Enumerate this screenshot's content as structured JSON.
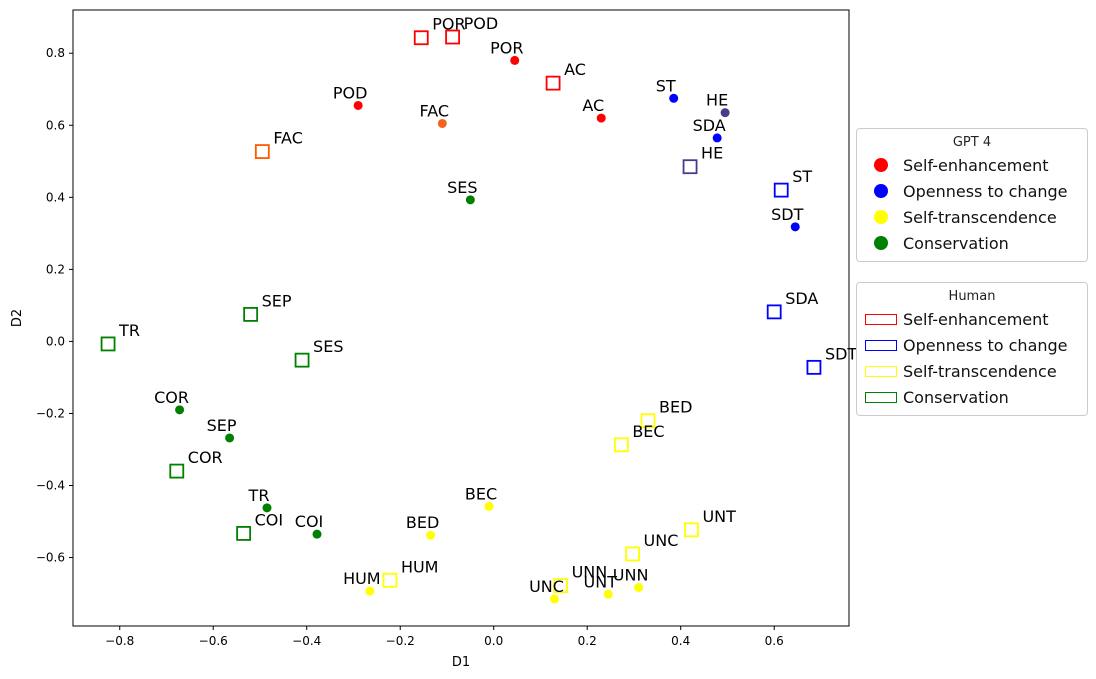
{
  "chart_data": {
    "type": "scatter",
    "title": "",
    "xlabel": "D1",
    "ylabel": "D2",
    "xlim": [
      -0.9,
      0.76
    ],
    "ylim": [
      -0.79,
      0.92
    ],
    "xticks": [
      -0.8,
      -0.6,
      -0.4,
      -0.2,
      0.0,
      0.2,
      0.4,
      0.6
    ],
    "yticks": [
      -0.6,
      -0.4,
      -0.2,
      0.0,
      0.2,
      0.4,
      0.6,
      0.8
    ],
    "xtick_labels": [
      "−0.8",
      "−0.6",
      "−0.4",
      "−0.2",
      "0.0",
      "0.2",
      "0.4",
      "0.6"
    ],
    "ytick_labels": [
      "−0.6",
      "−0.4",
      "−0.2",
      "0.0",
      "0.2",
      "0.4",
      "0.6",
      "0.8"
    ],
    "colors": {
      "red": "#ff0000",
      "blue": "#0000ff",
      "yellow": "#ffff00",
      "green": "#008000",
      "orange": "#ff5a00",
      "purple": "#483d8b",
      "dot_orange": "#f2641e"
    },
    "series": [
      {
        "name": "GPT 4",
        "marker": "circle",
        "points": [
          {
            "label": "POD",
            "x": -0.29,
            "y": 0.655,
            "color": "#ff0000"
          },
          {
            "label": "FAC",
            "x": -0.11,
            "y": 0.605,
            "color": "#f2641e"
          },
          {
            "label": "POR",
            "x": 0.045,
            "y": 0.78,
            "color": "#ff0000"
          },
          {
            "label": "AC",
            "x": 0.23,
            "y": 0.62,
            "color": "#ff0000"
          },
          {
            "label": "ST",
            "x": 0.385,
            "y": 0.675,
            "color": "#0000ff"
          },
          {
            "label": "HE",
            "x": 0.495,
            "y": 0.635,
            "color": "#483d8b"
          },
          {
            "label": "SDA",
            "x": 0.478,
            "y": 0.565,
            "color": "#0000ff"
          },
          {
            "label": "SDT",
            "x": 0.645,
            "y": 0.318,
            "color": "#0000ff"
          },
          {
            "label": "SES",
            "x": -0.05,
            "y": 0.393,
            "color": "#008000"
          },
          {
            "label": "COR",
            "x": -0.672,
            "y": -0.19,
            "color": "#008000"
          },
          {
            "label": "SEP",
            "x": -0.565,
            "y": -0.268,
            "color": "#008000"
          },
          {
            "label": "TR",
            "x": -0.485,
            "y": -0.462,
            "color": "#008000"
          },
          {
            "label": "COI",
            "x": -0.378,
            "y": -0.535,
            "color": "#008000"
          },
          {
            "label": "BEC",
            "x": -0.01,
            "y": -0.458,
            "color": "#ffff00"
          },
          {
            "label": "BED",
            "x": -0.135,
            "y": -0.538,
            "color": "#ffff00"
          },
          {
            "label": "HUM",
            "x": -0.265,
            "y": -0.693,
            "color": "#ffff00"
          },
          {
            "label": "UNC",
            "x": 0.13,
            "y": -0.715,
            "color": "#ffff00"
          },
          {
            "label": "UNT",
            "x": 0.245,
            "y": -0.702,
            "color": "#ffff00"
          },
          {
            "label": "UNN",
            "x": 0.31,
            "y": -0.683,
            "color": "#ffff00"
          }
        ]
      },
      {
        "name": "Human",
        "marker": "square",
        "points": [
          {
            "label": "POR",
            "x": -0.155,
            "y": 0.843,
            "color": "#ff0000"
          },
          {
            "label": "POD",
            "x": -0.088,
            "y": 0.845,
            "color": "#ff0000"
          },
          {
            "label": "AC",
            "x": 0.127,
            "y": 0.717,
            "color": "#ff0000"
          },
          {
            "label": "FAC",
            "x": -0.495,
            "y": 0.527,
            "color": "#ff5a00"
          },
          {
            "label": "HE",
            "x": 0.42,
            "y": 0.485,
            "color": "#483d8b"
          },
          {
            "label": "ST",
            "x": 0.615,
            "y": 0.42,
            "color": "#0000ff"
          },
          {
            "label": "SDA",
            "x": 0.6,
            "y": 0.082,
            "color": "#0000ff"
          },
          {
            "label": "SDT",
            "x": 0.685,
            "y": -0.072,
            "color": "#0000ff"
          },
          {
            "label": "TR",
            "x": -0.825,
            "y": -0.007,
            "color": "#008000"
          },
          {
            "label": "SEP",
            "x": -0.52,
            "y": 0.075,
            "color": "#008000"
          },
          {
            "label": "SES",
            "x": -0.41,
            "y": -0.052,
            "color": "#008000"
          },
          {
            "label": "COR",
            "x": -0.678,
            "y": -0.36,
            "color": "#008000"
          },
          {
            "label": "COI",
            "x": -0.535,
            "y": -0.533,
            "color": "#008000"
          },
          {
            "label": "BED",
            "x": 0.33,
            "y": -0.22,
            "color": "#ffff00"
          },
          {
            "label": "BEC",
            "x": 0.273,
            "y": -0.287,
            "color": "#ffff00"
          },
          {
            "label": "UNT",
            "x": 0.423,
            "y": -0.523,
            "color": "#ffff00"
          },
          {
            "label": "UNC",
            "x": 0.297,
            "y": -0.59,
            "color": "#ffff00"
          },
          {
            "label": "HUM",
            "x": -0.222,
            "y": -0.663,
            "color": "#ffff00"
          },
          {
            "label": "UNN",
            "x": 0.143,
            "y": -0.678,
            "color": "#ffff00"
          }
        ]
      }
    ],
    "legends": [
      {
        "title": "GPT 4",
        "placement": "right-upper",
        "entries": [
          {
            "label": "Self-enhancement",
            "color": "#ff0000"
          },
          {
            "label": "Openness to change",
            "color": "#0000ff"
          },
          {
            "label": "Self-transcendence",
            "color": "#ffff00"
          },
          {
            "label": "Conservation",
            "color": "#008000"
          }
        ]
      },
      {
        "title": "Human",
        "placement": "right-middle",
        "entries": [
          {
            "label": "Self-enhancement",
            "color": "#ff0000"
          },
          {
            "label": "Openness to change",
            "color": "#0000ff"
          },
          {
            "label": "Self-transcendence",
            "color": "#ffff00"
          },
          {
            "label": "Conservation",
            "color": "#008000"
          }
        ]
      }
    ]
  }
}
